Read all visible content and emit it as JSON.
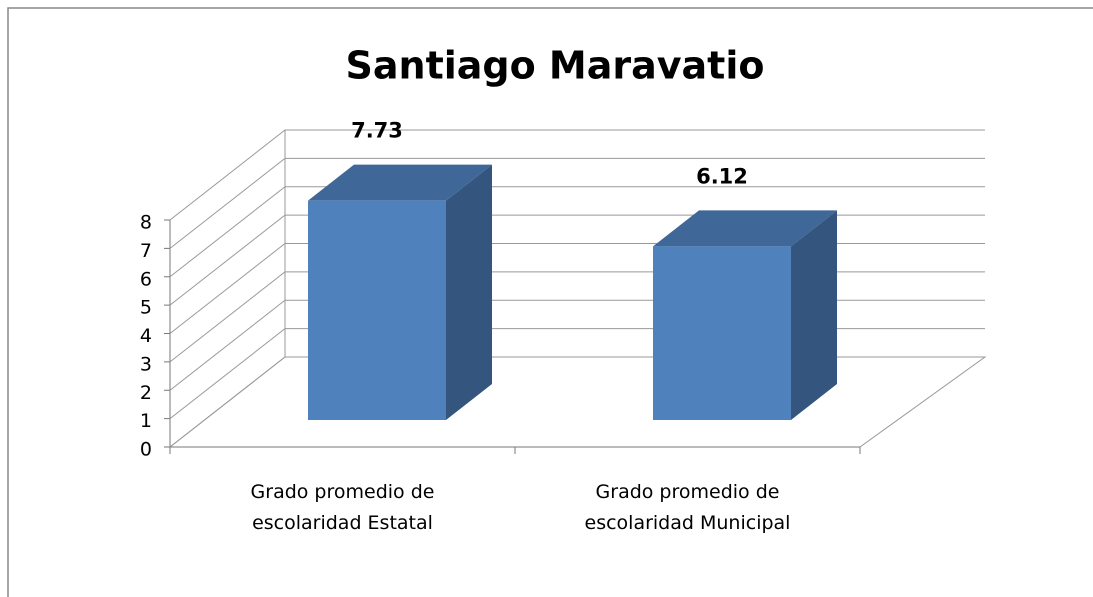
{
  "chart_data": {
    "type": "bar3d",
    "title": "Santiago Maravatio",
    "categories": [
      "Grado promedio de escolaridad Estatal",
      "Grado promedio de escolaridad Municipal"
    ],
    "values": [
      7.73,
      6.12
    ],
    "color": "#4f81bd",
    "ylim": [
      0,
      8
    ],
    "yticks": [
      0,
      1,
      2,
      3,
      4,
      5,
      6,
      7,
      8
    ],
    "grid": true
  }
}
